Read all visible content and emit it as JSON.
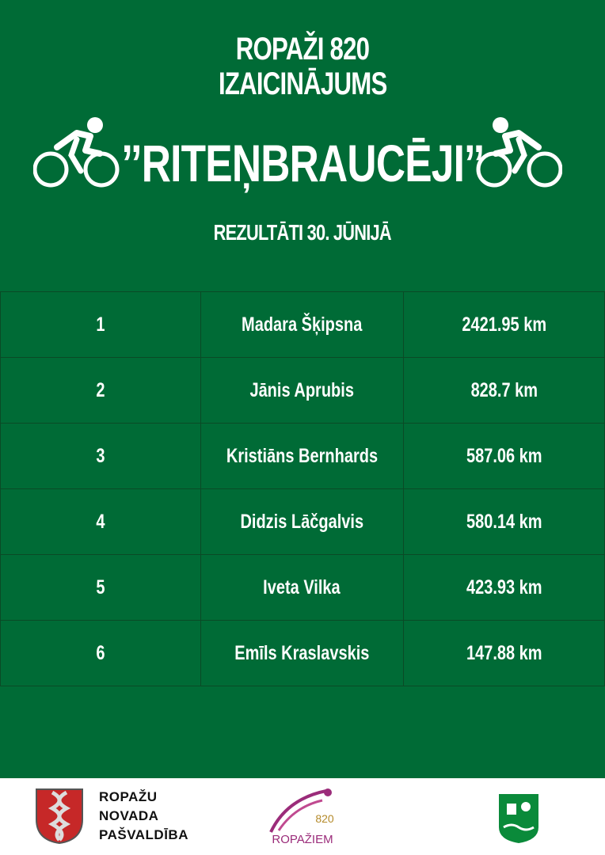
{
  "header": {
    "title_lines": [
      "ROPAŽI 820",
      "IZAICINĀJUMS"
    ],
    "subtitle": "’’RITEŅBRAUCĒJI’’",
    "date": "REZULTĀTI 30. JŪNIJĀ"
  },
  "table": {
    "rows": [
      [
        "1",
        "Madara Šķipsna",
        "2421.95 km"
      ],
      [
        "2",
        "Jānis Aprubis",
        "828.7 km"
      ],
      [
        "3",
        "Kristiāns Bernhards",
        "587.06 km"
      ],
      [
        "4",
        "Didzis Lāčgalvis",
        "580.14 km"
      ],
      [
        "5",
        "Iveta Vilka",
        "423.93 km"
      ],
      [
        "6",
        "Emīls Kraslavskis",
        "147.88 km"
      ]
    ]
  },
  "footer": {
    "org": [
      "ROPAŽU",
      "NOVADA",
      "PAŠVALDĪBA"
    ],
    "logo_number": "820",
    "logo_text": "ROPAŽIEM"
  }
}
